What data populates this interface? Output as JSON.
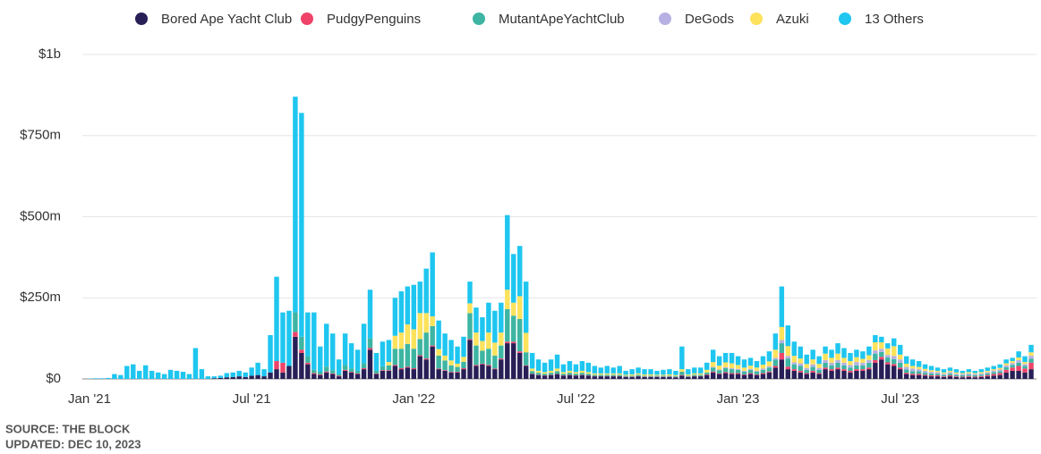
{
  "chart_data": {
    "type": "bar",
    "stacked": true,
    "source": "SOURCE: THE BLOCK",
    "updated": "UPDATED: DEC 10, 2023",
    "ylim": [
      0,
      1000
    ],
    "yticks": [
      {
        "value": 0,
        "label": "$0"
      },
      {
        "value": 250,
        "label": "$250m"
      },
      {
        "value": 500,
        "label": "$500m"
      },
      {
        "value": 750,
        "label": "$750m"
      },
      {
        "value": 1000,
        "label": "$1b"
      }
    ],
    "grid": true,
    "legend": "top",
    "categories": [
      "Jan '21",
      null,
      null,
      null,
      null,
      null,
      null,
      null,
      null,
      null,
      null,
      null,
      null,
      null,
      null,
      null,
      null,
      null,
      null,
      null,
      null,
      null,
      null,
      null,
      null,
      null,
      "Jul '21",
      null,
      null,
      null,
      null,
      null,
      null,
      null,
      null,
      null,
      null,
      null,
      null,
      null,
      null,
      null,
      null,
      null,
      null,
      null,
      null,
      null,
      null,
      null,
      null,
      null,
      "Jan '22",
      null,
      null,
      null,
      null,
      null,
      null,
      null,
      null,
      null,
      null,
      null,
      null,
      null,
      null,
      null,
      null,
      null,
      null,
      null,
      null,
      null,
      null,
      null,
      null,
      null,
      "Jul '22",
      null,
      null,
      null,
      null,
      null,
      null,
      null,
      null,
      null,
      null,
      null,
      null,
      null,
      null,
      null,
      null,
      null,
      null,
      null,
      null,
      null,
      null,
      null,
      null,
      null,
      "Jan '23",
      null,
      null,
      null,
      null,
      null,
      null,
      null,
      null,
      null,
      null,
      null,
      null,
      null,
      null,
      null,
      null,
      null,
      null,
      null,
      null,
      null,
      null,
      null,
      null,
      null,
      "Jul '23",
      null,
      null,
      null,
      null,
      null,
      null,
      null,
      null,
      null,
      null,
      null,
      null,
      null,
      null,
      null,
      null,
      null,
      null,
      null,
      null,
      null
    ],
    "series": [
      {
        "name": "Bored Ape Yacht Club",
        "color": "#281f57",
        "values": [
          0,
          0,
          0,
          0,
          0,
          0,
          0,
          0,
          0,
          0,
          0,
          0,
          0,
          0,
          0,
          0,
          0,
          0,
          0,
          0,
          2,
          3,
          5,
          6,
          8,
          6,
          10,
          12,
          8,
          20,
          30,
          20,
          40,
          130,
          80,
          45,
          15,
          12,
          20,
          15,
          8,
          25,
          20,
          15,
          30,
          90,
          15,
          25,
          25,
          40,
          30,
          35,
          30,
          70,
          60,
          100,
          30,
          25,
          20,
          20,
          30,
          120,
          40,
          45,
          40,
          30,
          60,
          110,
          110,
          80,
          40,
          15,
          12,
          10,
          12,
          15,
          10,
          12,
          10,
          12,
          10,
          8,
          8,
          8,
          8,
          8,
          6,
          6,
          8,
          6,
          6,
          6,
          6,
          6,
          5,
          10,
          6,
          8,
          8,
          12,
          20,
          15,
          18,
          15,
          15,
          12,
          15,
          12,
          15,
          20,
          35,
          60,
          30,
          25,
          20,
          15,
          20,
          15,
          30,
          25,
          30,
          25,
          20,
          25,
          25,
          30,
          50,
          60,
          45,
          40,
          30,
          15,
          12,
          12,
          10,
          8,
          8,
          6,
          8,
          6,
          5,
          6,
          5,
          6,
          8,
          10,
          12,
          20,
          25,
          25,
          20,
          30
        ]
      },
      {
        "name": "PudgyPenguins",
        "color": "#f0436a",
        "values": [
          0,
          0,
          0,
          0,
          0,
          0,
          0,
          0,
          0,
          0,
          0,
          0,
          0,
          0,
          0,
          0,
          0,
          0,
          0,
          0,
          0,
          0,
          0,
          0,
          0,
          0,
          0,
          0,
          0,
          0,
          25,
          30,
          0,
          15,
          10,
          5,
          3,
          2,
          3,
          2,
          2,
          3,
          2,
          2,
          3,
          5,
          2,
          2,
          2,
          3,
          3,
          3,
          3,
          3,
          3,
          3,
          2,
          2,
          2,
          2,
          3,
          3,
          3,
          2,
          3,
          2,
          3,
          5,
          5,
          5,
          2,
          1,
          1,
          1,
          1,
          1,
          1,
          1,
          1,
          1,
          1,
          1,
          1,
          1,
          1,
          1,
          1,
          1,
          1,
          1,
          1,
          1,
          1,
          1,
          1,
          2,
          1,
          1,
          1,
          2,
          3,
          2,
          3,
          3,
          3,
          2,
          3,
          2,
          3,
          3,
          5,
          20,
          8,
          5,
          5,
          3,
          5,
          3,
          5,
          5,
          5,
          5,
          5,
          5,
          5,
          5,
          8,
          8,
          6,
          6,
          5,
          4,
          4,
          4,
          3,
          3,
          3,
          2,
          3,
          2,
          2,
          3,
          2,
          3,
          4,
          5,
          6,
          8,
          10,
          15,
          12,
          20
        ]
      },
      {
        "name": "MutantApeYachtClub",
        "color": "#3db5a2",
        "values": [
          0,
          0,
          0,
          0,
          0,
          0,
          0,
          0,
          0,
          0,
          0,
          0,
          0,
          0,
          0,
          0,
          0,
          0,
          0,
          0,
          0,
          0,
          0,
          0,
          0,
          0,
          0,
          0,
          0,
          0,
          0,
          0,
          0,
          60,
          40,
          20,
          10,
          8,
          15,
          10,
          5,
          15,
          10,
          8,
          15,
          30,
          8,
          12,
          15,
          50,
          60,
          70,
          60,
          50,
          80,
          60,
          40,
          30,
          20,
          15,
          20,
          80,
          60,
          40,
          50,
          40,
          40,
          100,
          80,
          100,
          40,
          8,
          6,
          5,
          6,
          8,
          5,
          6,
          5,
          6,
          5,
          4,
          4,
          4,
          4,
          4,
          3,
          3,
          4,
          3,
          3,
          3,
          3,
          3,
          3,
          10,
          3,
          4,
          4,
          6,
          12,
          10,
          12,
          12,
          10,
          8,
          10,
          8,
          10,
          12,
          20,
          30,
          25,
          15,
          15,
          10,
          12,
          10,
          15,
          12,
          15,
          12,
          10,
          12,
          12,
          15,
          20,
          15,
          15,
          15,
          15,
          10,
          8,
          8,
          6,
          6,
          5,
          4,
          5,
          4,
          4,
          4,
          4,
          4,
          5,
          6,
          6,
          8,
          8,
          10,
          8,
          12
        ]
      },
      {
        "name": "DeGods",
        "color": "#b6b1e2",
        "values": [
          0,
          0,
          0,
          0,
          0,
          0,
          0,
          0,
          0,
          0,
          0,
          0,
          0,
          0,
          0,
          0,
          0,
          0,
          0,
          0,
          0,
          0,
          0,
          0,
          0,
          0,
          0,
          0,
          0,
          0,
          0,
          0,
          0,
          0,
          0,
          0,
          0,
          0,
          0,
          0,
          0,
          0,
          0,
          0,
          0,
          0,
          0,
          0,
          0,
          0,
          0,
          0,
          0,
          0,
          0,
          0,
          0,
          0,
          0,
          0,
          0,
          0,
          0,
          0,
          0,
          0,
          0,
          0,
          0,
          0,
          0,
          0,
          0,
          0,
          0,
          0,
          0,
          0,
          0,
          0,
          0,
          0,
          0,
          0,
          0,
          0,
          0,
          0,
          0,
          0,
          0,
          0,
          0,
          0,
          0,
          0,
          0,
          0,
          0,
          0,
          2,
          2,
          3,
          3,
          3,
          3,
          3,
          3,
          4,
          4,
          5,
          10,
          8,
          6,
          8,
          6,
          8,
          6,
          8,
          8,
          8,
          8,
          8,
          10,
          8,
          8,
          10,
          10,
          8,
          10,
          10,
          8,
          8,
          6,
          6,
          5,
          5,
          4,
          5,
          4,
          4,
          4,
          4,
          4,
          4,
          5,
          5,
          6,
          6,
          8,
          6,
          10
        ]
      },
      {
        "name": "Azuki",
        "color": "#fde25c",
        "values": [
          0,
          0,
          0,
          0,
          0,
          0,
          0,
          0,
          0,
          0,
          0,
          0,
          0,
          0,
          0,
          0,
          0,
          0,
          0,
          0,
          0,
          0,
          0,
          0,
          0,
          0,
          0,
          0,
          0,
          0,
          0,
          0,
          0,
          0,
          0,
          0,
          0,
          0,
          0,
          0,
          0,
          0,
          0,
          0,
          0,
          0,
          0,
          0,
          10,
          40,
          50,
          60,
          60,
          80,
          60,
          30,
          20,
          15,
          15,
          10,
          15,
          30,
          40,
          30,
          50,
          40,
          40,
          60,
          40,
          70,
          60,
          8,
          6,
          5,
          6,
          8,
          5,
          6,
          5,
          6,
          5,
          4,
          4,
          4,
          4,
          4,
          3,
          4,
          4,
          4,
          4,
          3,
          3,
          4,
          3,
          8,
          4,
          4,
          4,
          8,
          15,
          12,
          15,
          15,
          12,
          10,
          10,
          10,
          12,
          15,
          25,
          40,
          30,
          20,
          15,
          12,
          15,
          12,
          20,
          15,
          20,
          15,
          12,
          15,
          12,
          15,
          25,
          20,
          20,
          30,
          15,
          10,
          8,
          7,
          6,
          5,
          4,
          4,
          4,
          4,
          3,
          4,
          3,
          4,
          4,
          4,
          5,
          6,
          6,
          8,
          6,
          10
        ]
      },
      {
        "name": "13 Others",
        "color": "#1ec6f0",
        "values": [
          1,
          2,
          2,
          3,
          15,
          12,
          40,
          45,
          25,
          42,
          25,
          20,
          15,
          28,
          25,
          22,
          15,
          95,
          30,
          8,
          6,
          7,
          13,
          14,
          17,
          14,
          25,
          38,
          22,
          115,
          260,
          155,
          170,
          665,
          690,
          135,
          177,
          78,
          132,
          113,
          45,
          97,
          78,
          65,
          122,
          150,
          55,
          76,
          68,
          117,
          127,
          117,
          137,
          97,
          137,
          197,
          88,
          68,
          63,
          53,
          62,
          67,
          77,
          73,
          92,
          98,
          92,
          230,
          150,
          155,
          158,
          48,
          35,
          29,
          35,
          43,
          24,
          30,
          24,
          30,
          29,
          23,
          18,
          23,
          18,
          23,
          12,
          16,
          18,
          16,
          16,
          12,
          15,
          16,
          13,
          70,
          16,
          18,
          18,
          22,
          38,
          29,
          29,
          32,
          27,
          25,
          24,
          20,
          26,
          31,
          50,
          125,
          64,
          44,
          37,
          29,
          30,
          24,
          22,
          25,
          32,
          30,
          25,
          23,
          23,
          27,
          22,
          17,
          16,
          24,
          30,
          23,
          20,
          18,
          14,
          13,
          10,
          10,
          10,
          10,
          7,
          9,
          7,
          9,
          10,
          10,
          11,
          12,
          10,
          19,
          18,
          23
        ]
      }
    ]
  }
}
